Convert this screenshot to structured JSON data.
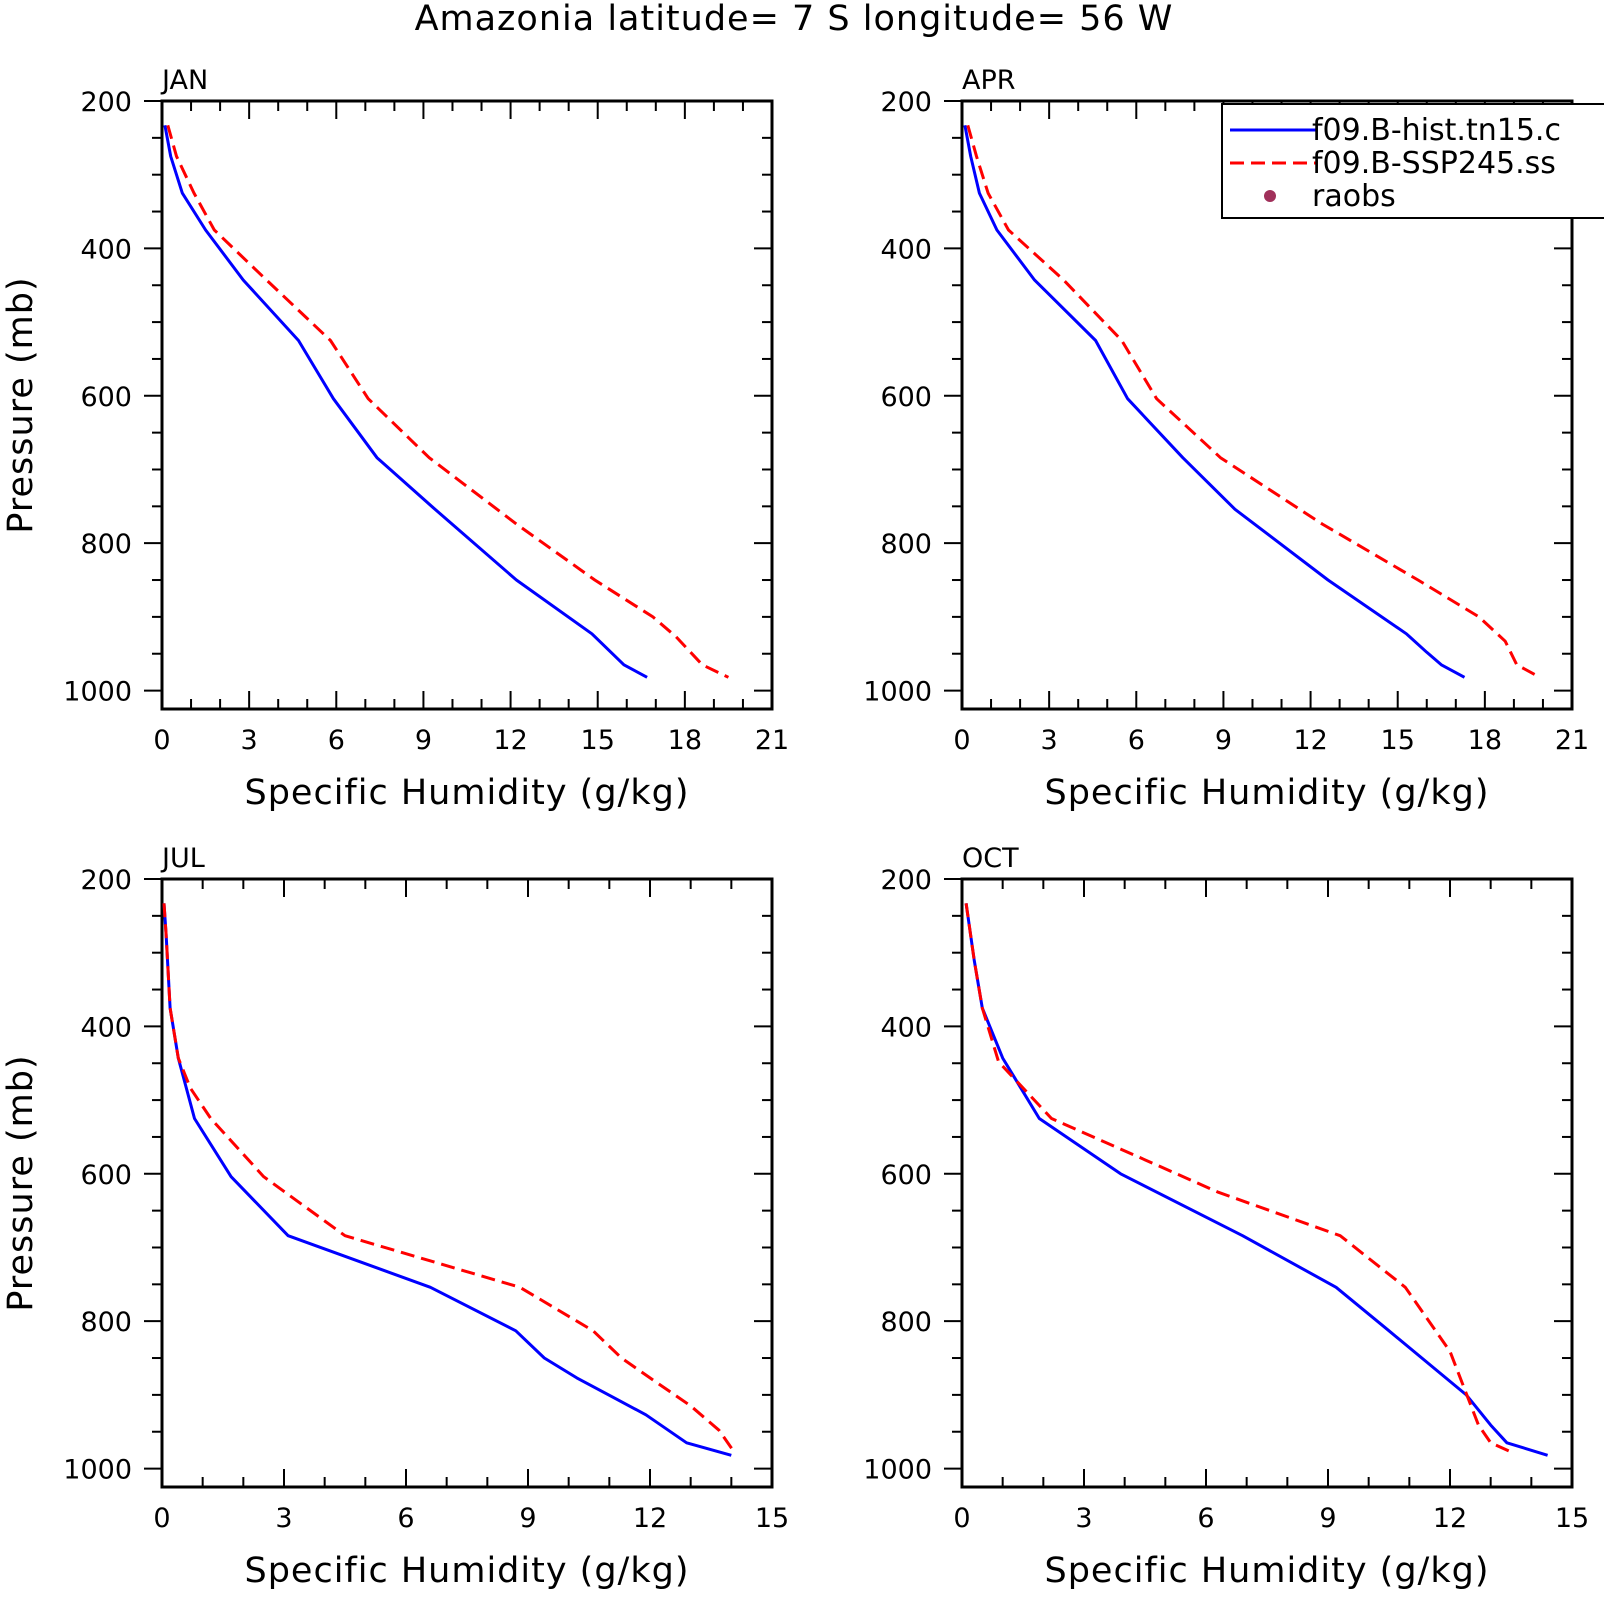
{
  "figure": {
    "title": "Amazonia  latitude= 7 S longitude= 56 W"
  },
  "legend": {
    "entries": [
      {
        "label": "f09.B-hist.tn15.c",
        "color": "#0000ff",
        "style": "solid"
      },
      {
        "label": "f09.B-SSP245.ss",
        "color": "#ff0000",
        "style": "dashed"
      },
      {
        "label": "raobs",
        "color": "#a0305a",
        "style": "marker"
      }
    ]
  },
  "chart_data": [
    {
      "type": "line",
      "panel": "JAN",
      "xlabel": "Specific Humidity (g/kg)",
      "ylabel": "Pressure (mb)",
      "xlim": [
        0,
        21
      ],
      "ylim": [
        200,
        1025
      ],
      "y_inverted": true,
      "xticks": [
        0,
        3,
        6,
        9,
        12,
        15,
        18,
        21
      ],
      "yticks": [
        200,
        400,
        600,
        800,
        1000
      ],
      "series": [
        {
          "name": "f09.B-hist.tn15.c",
          "color": "#0000ff",
          "style": "solid",
          "x": [
            0.1,
            0.3,
            0.7,
            1.5,
            2.8,
            4.7,
            5.9,
            7.4,
            9.4,
            12.2,
            14.8,
            15.9,
            16.7
          ],
          "y": [
            233,
            275,
            325,
            375,
            443,
            525,
            604,
            684,
            754,
            850,
            923,
            965,
            982
          ]
        },
        {
          "name": "f09.B-SSP245.ss",
          "color": "#ff0000",
          "style": "dashed",
          "x": [
            0.2,
            0.5,
            1.1,
            1.8,
            3.6,
            5.8,
            7.1,
            9.2,
            12.2,
            14.9,
            16.9,
            17.7,
            18.6,
            19.5
          ],
          "y": [
            233,
            275,
            325,
            375,
            443,
            525,
            604,
            684,
            774,
            850,
            900,
            927,
            965,
            982
          ]
        }
      ]
    },
    {
      "type": "line",
      "panel": "APR",
      "xlabel": "Specific Humidity (g/kg)",
      "ylabel": "",
      "xlim": [
        0,
        21
      ],
      "ylim": [
        200,
        1025
      ],
      "y_inverted": true,
      "xticks": [
        0,
        3,
        6,
        9,
        12,
        15,
        18,
        21
      ],
      "yticks": [
        200,
        400,
        600,
        800,
        1000
      ],
      "series": [
        {
          "name": "f09.B-hist.tn15.c",
          "color": "#0000ff",
          "style": "solid",
          "x": [
            0.1,
            0.3,
            0.6,
            1.2,
            2.5,
            4.6,
            5.7,
            7.6,
            9.4,
            12.6,
            15.3,
            16.0,
            16.5,
            17.3
          ],
          "y": [
            233,
            275,
            325,
            375,
            443,
            525,
            604,
            684,
            754,
            850,
            923,
            948,
            965,
            982
          ]
        },
        {
          "name": "f09.B-SSP245.ss",
          "color": "#ff0000",
          "style": "dashed",
          "x": [
            0.2,
            0.5,
            0.9,
            1.6,
            3.5,
            5.5,
            6.7,
            8.9,
            12.4,
            15.7,
            17.8,
            18.7,
            19.1,
            19.9
          ],
          "y": [
            233,
            275,
            325,
            375,
            443,
            525,
            604,
            684,
            774,
            850,
            900,
            933,
            965,
            982
          ]
        }
      ]
    },
    {
      "type": "line",
      "panel": "JUL",
      "xlabel": "Specific Humidity (g/kg)",
      "ylabel": "Pressure (mb)",
      "xlim": [
        0,
        15
      ],
      "ylim": [
        200,
        1025
      ],
      "y_inverted": true,
      "xticks": [
        0,
        3,
        6,
        9,
        12,
        15
      ],
      "yticks": [
        200,
        400,
        600,
        800,
        1000
      ],
      "series": [
        {
          "name": "f09.B-hist.tn15.c",
          "color": "#0000ff",
          "style": "solid",
          "x": [
            0.05,
            0.1,
            0.2,
            0.4,
            0.8,
            1.7,
            3.1,
            6.6,
            8.7,
            9.4,
            10.2,
            11.9,
            12.9,
            14.0
          ],
          "y": [
            233,
            275,
            375,
            443,
            525,
            604,
            684,
            754,
            813,
            850,
            877,
            927,
            965,
            982
          ]
        },
        {
          "name": "f09.B-SSP245.ss",
          "color": "#ff0000",
          "style": "dashed",
          "x": [
            0.05,
            0.1,
            0.2,
            0.4,
            0.7,
            1.2,
            2.5,
            4.5,
            8.8,
            10.6,
            11.3,
            12.0,
            13.0,
            13.7,
            14.1
          ],
          "y": [
            233,
            275,
            375,
            443,
            484,
            525,
            604,
            684,
            754,
            813,
            850,
            877,
            915,
            948,
            980
          ]
        }
      ]
    },
    {
      "type": "line",
      "panel": "OCT",
      "xlabel": "Specific Humidity (g/kg)",
      "ylabel": "",
      "xlim": [
        0,
        15
      ],
      "ylim": [
        200,
        1025
      ],
      "y_inverted": true,
      "xticks": [
        0,
        3,
        6,
        9,
        12,
        15
      ],
      "yticks": [
        200,
        400,
        600,
        800,
        1000
      ],
      "series": [
        {
          "name": "f09.B-hist.tn15.c",
          "color": "#0000ff",
          "style": "solid",
          "x": [
            0.1,
            0.3,
            0.5,
            1.0,
            1.9,
            3.9,
            6.9,
            9.2,
            10.5,
            12.4,
            13.0,
            13.4,
            14.4
          ],
          "y": [
            233,
            310,
            375,
            443,
            525,
            600,
            684,
            754,
            813,
            900,
            941,
            965,
            982
          ]
        },
        {
          "name": "f09.B-SSP245.ss",
          "color": "#ff0000",
          "style": "dashed",
          "x": [
            0.1,
            0.3,
            0.5,
            0.9,
            2.2,
            6.3,
            9.3,
            10.9,
            12.0,
            12.7,
            13.0,
            13.6
          ],
          "y": [
            233,
            310,
            375,
            448,
            525,
            625,
            684,
            754,
            841,
            941,
            965,
            980
          ]
        }
      ]
    }
  ]
}
